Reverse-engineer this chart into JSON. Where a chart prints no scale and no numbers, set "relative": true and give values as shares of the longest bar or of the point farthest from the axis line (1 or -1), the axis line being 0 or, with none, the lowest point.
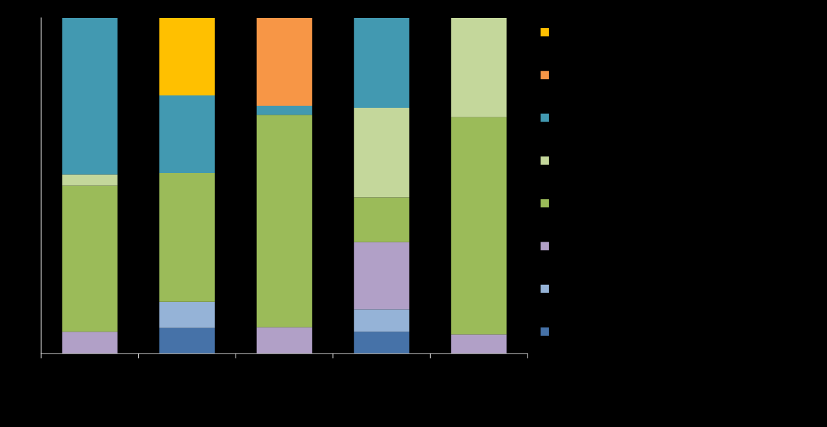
{
  "chart_data": {
    "type": "bar",
    "stacked": true,
    "relative": true,
    "tick_labels": false,
    "grid": false,
    "categories": [
      null,
      null,
      null,
      null,
      null
    ],
    "series": [
      {
        "color": "#4672a8",
        "values": [
          0,
          0.076,
          0,
          0.065,
          0
        ]
      },
      {
        "color": "#95b3d7",
        "values": [
          0,
          0.078,
          0,
          0.067,
          0
        ]
      },
      {
        "color": "#b1a0c7",
        "values": [
          0.065,
          0,
          0.078,
          0.2,
          0.057
        ]
      },
      {
        "color": "#9bbb59",
        "values": [
          0.435,
          0.384,
          0.633,
          0.133,
          0.647
        ]
      },
      {
        "color": "#c4d79b",
        "values": [
          0.033,
          0,
          0,
          0.267,
          0.296
        ]
      },
      {
        "color": "#4299b1",
        "values": [
          0.467,
          0.231,
          0.027,
          0.268,
          0
        ]
      },
      {
        "color": "#f79646",
        "values": [
          0,
          0,
          0.262,
          0,
          0
        ]
      },
      {
        "color": "#ffc000",
        "values": [
          0,
          0.231,
          0,
          0,
          0
        ]
      }
    ]
  }
}
